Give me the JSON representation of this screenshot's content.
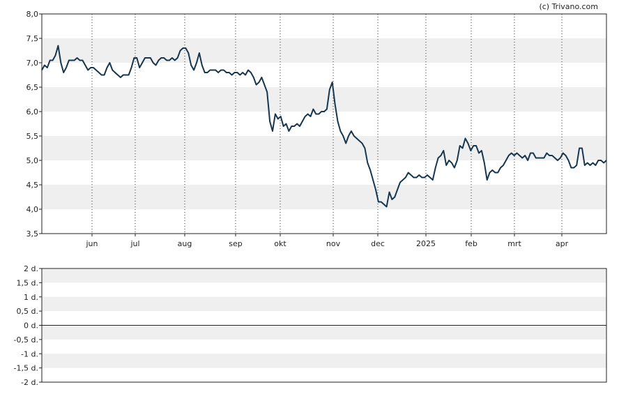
{
  "credit": "(c) Trivano.com",
  "chart_data": [
    {
      "type": "line",
      "ylim": [
        3.5,
        8.0
      ],
      "y_ticks": [
        "8,0",
        "7,5",
        "7,0",
        "6,5",
        "6,0",
        "5,5",
        "5,0",
        "4,5",
        "4,0",
        "3,5"
      ],
      "x_ticks": [
        "jun",
        "jul",
        "aug",
        "sep",
        "okt",
        "nov",
        "dec",
        "2025",
        "feb",
        "mrt",
        "apr"
      ],
      "grid": "alternating horizontal bands, dotted vertical lines at month ticks",
      "line_color": "#16364f",
      "series": [
        {
          "values": [
            6.85,
            6.95,
            6.9,
            7.05,
            7.05,
            7.15,
            7.35,
            7.0,
            6.8,
            6.9,
            7.05,
            7.05,
            7.05,
            7.1,
            7.05,
            7.05,
            6.95,
            6.85,
            6.9,
            6.9,
            6.85,
            6.8,
            6.75,
            6.75,
            6.9,
            7.0,
            6.85,
            6.8,
            6.75,
            6.7,
            6.75,
            6.75,
            6.75,
            6.9,
            7.1,
            7.1,
            6.9,
            7.0,
            7.1,
            7.1,
            7.1,
            7.0,
            6.95,
            7.05,
            7.1,
            7.1,
            7.05,
            7.05,
            7.1,
            7.05,
            7.1,
            7.25,
            7.3,
            7.3,
            7.2,
            6.95,
            6.85,
            7.0,
            7.2,
            6.95,
            6.8,
            6.8,
            6.85,
            6.85,
            6.85,
            6.8,
            6.85,
            6.85,
            6.8,
            6.8,
            6.75,
            6.8,
            6.8,
            6.75,
            6.8,
            6.75,
            6.85,
            6.8,
            6.7,
            6.55,
            6.6,
            6.7,
            6.55,
            6.4,
            5.8,
            5.6,
            5.95,
            5.85,
            5.9,
            5.7,
            5.75,
            5.6,
            5.7,
            5.7,
            5.75,
            5.7,
            5.8,
            5.9,
            5.95,
            5.9,
            6.05,
            5.95,
            5.95,
            6.0,
            6.0,
            6.05,
            6.45,
            6.6,
            6.15,
            5.8,
            5.6,
            5.5,
            5.35,
            5.5,
            5.6,
            5.5,
            5.45,
            5.4,
            5.35,
            5.25,
            4.95,
            4.8,
            4.6,
            4.4,
            4.15,
            4.15,
            4.1,
            4.05,
            4.35,
            4.2,
            4.25,
            4.4,
            4.55,
            4.6,
            4.65,
            4.75,
            4.7,
            4.65,
            4.65,
            4.7,
            4.65,
            4.65,
            4.7,
            4.65,
            4.6,
            4.85,
            5.05,
            5.1,
            5.2,
            4.9,
            5.0,
            4.95,
            4.85,
            5.0,
            5.3,
            5.25,
            5.45,
            5.35,
            5.2,
            5.3,
            5.3,
            5.15,
            5.2,
            4.95,
            4.6,
            4.75,
            4.8,
            4.75,
            4.75,
            4.85,
            4.9,
            5.0,
            5.1,
            5.15,
            5.1,
            5.15,
            5.1,
            5.05,
            5.1,
            5.0,
            5.15,
            5.15,
            5.05,
            5.05,
            5.05,
            5.05,
            5.15,
            5.1,
            5.1,
            5.05,
            5.0,
            5.05,
            5.15,
            5.1,
            5.0,
            4.85,
            4.85,
            4.9,
            5.25,
            5.25,
            4.9,
            4.95,
            4.9,
            4.95,
            4.9,
            5.0,
            5.0,
            4.95,
            5.0
          ]
        }
      ]
    },
    {
      "type": "line",
      "ylim": [
        -2,
        2
      ],
      "y_ticks": [
        "2 d.",
        "1,5 d.",
        "1 d.",
        "0,5 d.",
        "0 d.",
        "-0,5 d.",
        "-1 d.",
        "-1,5 d.",
        "-2 d."
      ],
      "grid": "alternating horizontal bands, solid zero line",
      "series": []
    }
  ]
}
